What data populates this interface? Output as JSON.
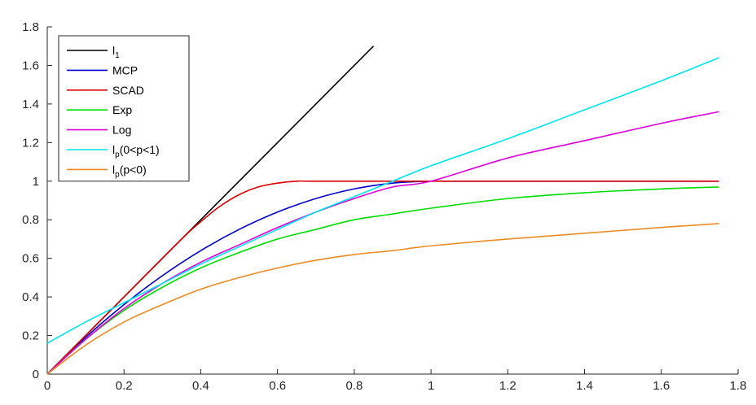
{
  "chart_data": {
    "type": "line",
    "title": "",
    "xlabel": "",
    "ylabel": "",
    "xlim": [
      0,
      1.8
    ],
    "ylim": [
      0,
      1.8
    ],
    "x_ticks": [
      0,
      0.2,
      0.4,
      0.6,
      0.8,
      1,
      1.2,
      1.4,
      1.6,
      1.8
    ],
    "y_ticks": [
      0,
      0.2,
      0.4,
      0.6,
      0.8,
      1,
      1.2,
      1.4,
      1.6,
      1.8
    ],
    "x_tick_labels": [
      "0",
      "0.2",
      "0.4",
      "0.6",
      "0.8",
      "1",
      "1.2",
      "1.4",
      "1.6",
      "1.8"
    ],
    "y_tick_labels": [
      "0",
      "0.2",
      "0.4",
      "0.6",
      "0.8",
      "1",
      "1.2",
      "1.4",
      "1.6",
      "1.8"
    ],
    "grid": false,
    "legend_position": "top-left",
    "series": [
      {
        "name": "l1",
        "label_main": "l",
        "label_sub": "1",
        "label_rest": "",
        "color": "#000000",
        "x": [
          0,
          0.85
        ],
        "y": [
          0,
          1.7
        ]
      },
      {
        "name": "MCP",
        "label_main": "MCP",
        "label_sub": "",
        "label_rest": "",
        "color": "#0000cc",
        "x": [
          0,
          0.1,
          0.2,
          0.3,
          0.4,
          0.5,
          0.6,
          0.7,
          0.8,
          0.9,
          1.0,
          1.05,
          1.2,
          1.4,
          1.6,
          1.75
        ],
        "y": [
          0,
          0.19,
          0.36,
          0.51,
          0.64,
          0.75,
          0.84,
          0.91,
          0.96,
          0.99,
          1.0,
          1.0,
          1.0,
          1.0,
          1.0,
          1.0
        ]
      },
      {
        "name": "SCAD",
        "label_main": "SCAD",
        "label_sub": "",
        "label_rest": "",
        "color": "#dd0000",
        "x": [
          0,
          0.2,
          0.35,
          0.4,
          0.45,
          0.5,
          0.55,
          0.6,
          0.65,
          0.7,
          1.0,
          1.4,
          1.75
        ],
        "y": [
          0,
          0.4,
          0.7,
          0.79,
          0.87,
          0.93,
          0.97,
          0.99,
          1.0,
          1.0,
          1.0,
          1.0,
          1.0
        ]
      },
      {
        "name": "Exp",
        "label_main": "Exp",
        "label_sub": "",
        "label_rest": "",
        "color": "#00dd00",
        "x": [
          0,
          0.1,
          0.2,
          0.3,
          0.4,
          0.5,
          0.6,
          0.7,
          0.8,
          0.9,
          1.0,
          1.2,
          1.4,
          1.6,
          1.75
        ],
        "y": [
          0,
          0.18,
          0.33,
          0.45,
          0.55,
          0.63,
          0.7,
          0.75,
          0.8,
          0.83,
          0.86,
          0.91,
          0.94,
          0.96,
          0.97
        ]
      },
      {
        "name": "Log",
        "label_main": "Log",
        "label_sub": "",
        "label_rest": "",
        "color": "#dd00dd",
        "x": [
          0,
          0.1,
          0.2,
          0.3,
          0.4,
          0.5,
          0.6,
          0.7,
          0.8,
          0.9,
          1.0,
          1.2,
          1.4,
          1.6,
          1.75
        ],
        "y": [
          0,
          0.18,
          0.34,
          0.47,
          0.58,
          0.67,
          0.76,
          0.84,
          0.91,
          0.97,
          1.0,
          1.12,
          1.21,
          1.3,
          1.36
        ]
      },
      {
        "name": "lp(0<p<1)",
        "label_main": "l",
        "label_sub": "p",
        "label_rest": "(0<p<1)",
        "color": "#00e5ee",
        "x": [
          0,
          0.1,
          0.2,
          0.3,
          0.4,
          0.5,
          0.6,
          0.7,
          0.8,
          0.9,
          1.0,
          1.2,
          1.4,
          1.6,
          1.75
        ],
        "y": [
          0.16,
          0.27,
          0.37,
          0.47,
          0.57,
          0.66,
          0.75,
          0.84,
          0.92,
          1.0,
          1.08,
          1.22,
          1.37,
          1.52,
          1.64
        ]
      },
      {
        "name": "lp(p<0)",
        "label_main": "l",
        "label_sub": "p",
        "label_rest": "(p<0)",
        "color": "#ee8a22",
        "x": [
          0,
          0.1,
          0.2,
          0.3,
          0.4,
          0.5,
          0.6,
          0.7,
          0.8,
          0.9,
          1.0,
          1.2,
          1.4,
          1.6,
          1.75
        ],
        "y": [
          0,
          0.15,
          0.27,
          0.36,
          0.44,
          0.5,
          0.55,
          0.59,
          0.62,
          0.64,
          0.665,
          0.7,
          0.73,
          0.76,
          0.78
        ]
      }
    ]
  }
}
